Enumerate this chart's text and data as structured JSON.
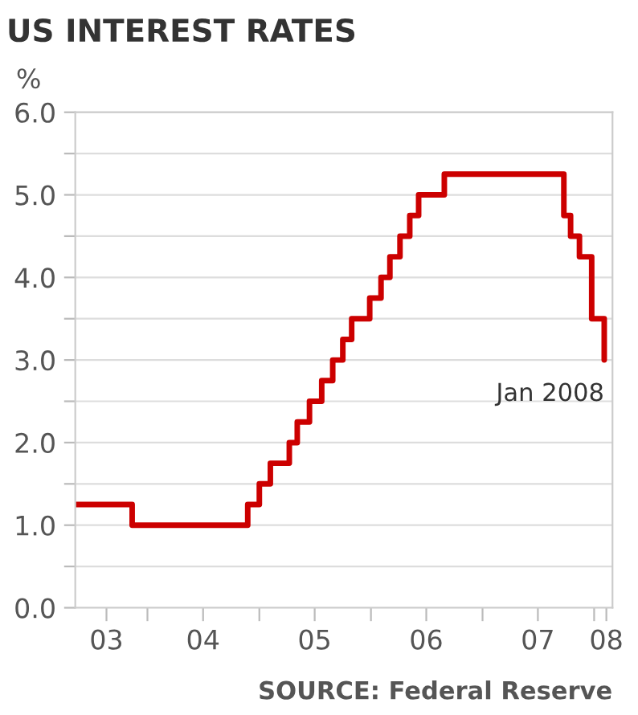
{
  "chart_data": {
    "type": "step",
    "title": "US INTEREST RATES",
    "ylabel": "%",
    "x": [
      "2003-05-10",
      "2003-11-12",
      "2004-11-24",
      "2005-01-01",
      "2005-02-06",
      "2005-04-09",
      "2005-05-05",
      "2005-06-14",
      "2005-07-24",
      "2005-08-29",
      "2005-10-01",
      "2005-10-30",
      "2005-12-28",
      "2006-02-03",
      "2006-03-04",
      "2006-04-06",
      "2006-05-08",
      "2006-06-06",
      "2006-08-29",
      "2007-09-24",
      "2007-10-16",
      "2007-11-14",
      "2007-12-24",
      "2008-02-03"
    ],
    "series": [
      {
        "color": "#cc0000",
        "values": [
          1.25,
          1.0,
          1.25,
          1.5,
          1.75,
          2.0,
          2.25,
          2.5,
          2.75,
          3.0,
          3.25,
          3.5,
          3.75,
          4.0,
          4.25,
          4.5,
          4.75,
          5.0,
          5.25,
          4.75,
          4.5,
          4.25,
          3.5,
          3.0
        ]
      }
    ],
    "xlim": [
      "2003-05-10",
      "2008-03-01"
    ],
    "xticks": [
      {
        "value": "2003-08-20",
        "label": "03"
      },
      {
        "value": "2004-07-01",
        "label": "04"
      },
      {
        "value": "2005-07-01",
        "label": "05"
      },
      {
        "value": "2006-07-01",
        "label": "06"
      },
      {
        "value": "2007-07-01",
        "label": "07"
      },
      {
        "value": "2008-02-10",
        "label": "08"
      },
      {
        "value": "2004-01-01",
        "label": null
      },
      {
        "value": "2005-01-01",
        "label": null
      },
      {
        "value": "2006-01-01",
        "label": null
      },
      {
        "value": "2007-01-01",
        "label": null
      },
      {
        "value": "2008-01-01",
        "label": null
      }
    ],
    "ylim": [
      0,
      6
    ],
    "yticks": [
      {
        "value": 0,
        "label": "0.0"
      },
      {
        "value": 0.5,
        "label": null
      },
      {
        "value": 1,
        "label": "1.0"
      },
      {
        "value": 1.5,
        "label": null
      },
      {
        "value": 2,
        "label": "2.0"
      },
      {
        "value": 2.5,
        "label": null
      },
      {
        "value": 3,
        "label": "3.0"
      },
      {
        "value": 3.5,
        "label": null
      },
      {
        "value": 4,
        "label": "4.0"
      },
      {
        "value": 4.5,
        "label": null
      },
      {
        "value": 5,
        "label": "5.0"
      },
      {
        "value": 5.5,
        "label": null
      },
      {
        "value": 6,
        "label": "6.0"
      }
    ],
    "grid": "y",
    "annotations": [
      {
        "text": "Jan 2008",
        "x": "2008-02-03",
        "y": 3.0
      },
      "SOURCE: Federal Reserve"
    ]
  }
}
